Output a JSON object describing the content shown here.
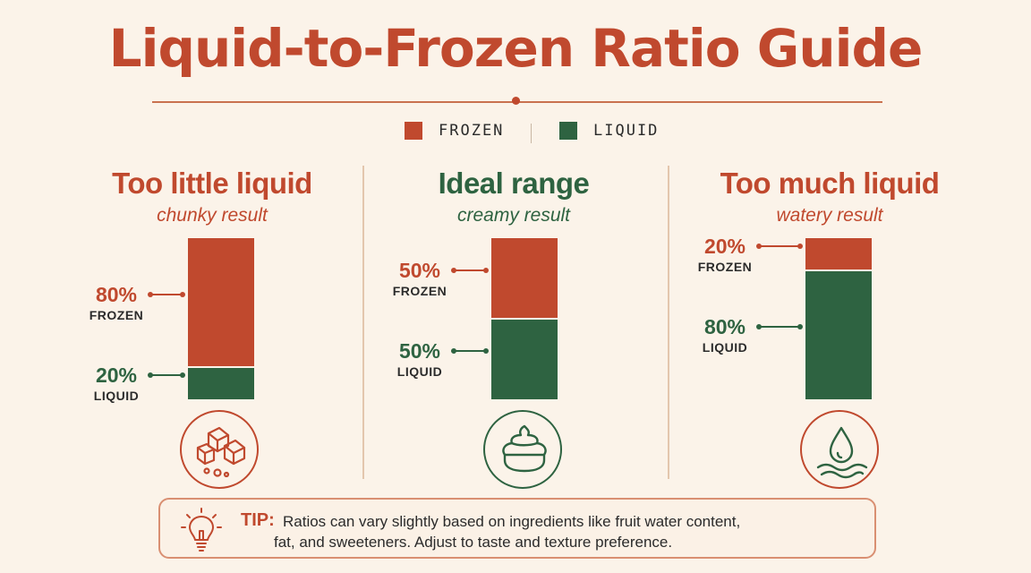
{
  "title": "Liquid-to-Frozen Ratio Guide",
  "colors": {
    "frozen": "#c0492e",
    "liquid": "#2e6341",
    "accent": "#c0492e"
  },
  "legend": {
    "frozen": "FROZEN",
    "liquid": "LIQUID"
  },
  "chart_data": {
    "type": "bar",
    "stacked": true,
    "orientation": "vertical",
    "categories": [
      "Too little liquid",
      "Ideal range",
      "Too much liquid"
    ],
    "series": [
      {
        "name": "FROZEN",
        "values": [
          80,
          50,
          20
        ]
      },
      {
        "name": "LIQUID",
        "values": [
          20,
          50,
          80
        ]
      }
    ],
    "ylim": [
      0,
      100
    ],
    "legend_position": "top-center"
  },
  "panels": [
    {
      "title": "Too little liquid",
      "subtitle": "chunky result",
      "tone": "frozen",
      "frozen_pct": "80%",
      "liquid_pct": "20%",
      "frozen_cap": "FROZEN",
      "liquid_cap": "LIQUID",
      "icon": "ice-cubes-icon"
    },
    {
      "title": "Ideal range",
      "subtitle": "creamy result",
      "tone": "liquid",
      "frozen_pct": "50%",
      "liquid_pct": "50%",
      "frozen_cap": "FROZEN",
      "liquid_cap": "LIQUID",
      "icon": "soft-serve-icon"
    },
    {
      "title": "Too much liquid",
      "subtitle": "watery result",
      "tone": "frozen",
      "frozen_pct": "20%",
      "liquid_pct": "80%",
      "frozen_cap": "FROZEN",
      "liquid_cap": "LIQUID",
      "icon": "water-drop-icon"
    }
  ],
  "tip": {
    "label": "TIP:",
    "line1": "Ratios can vary slightly based on ingredients like fruit water content,",
    "line2": "fat, and sweeteners. Adjust to taste and texture preference.",
    "icon": "lightbulb-icon"
  }
}
